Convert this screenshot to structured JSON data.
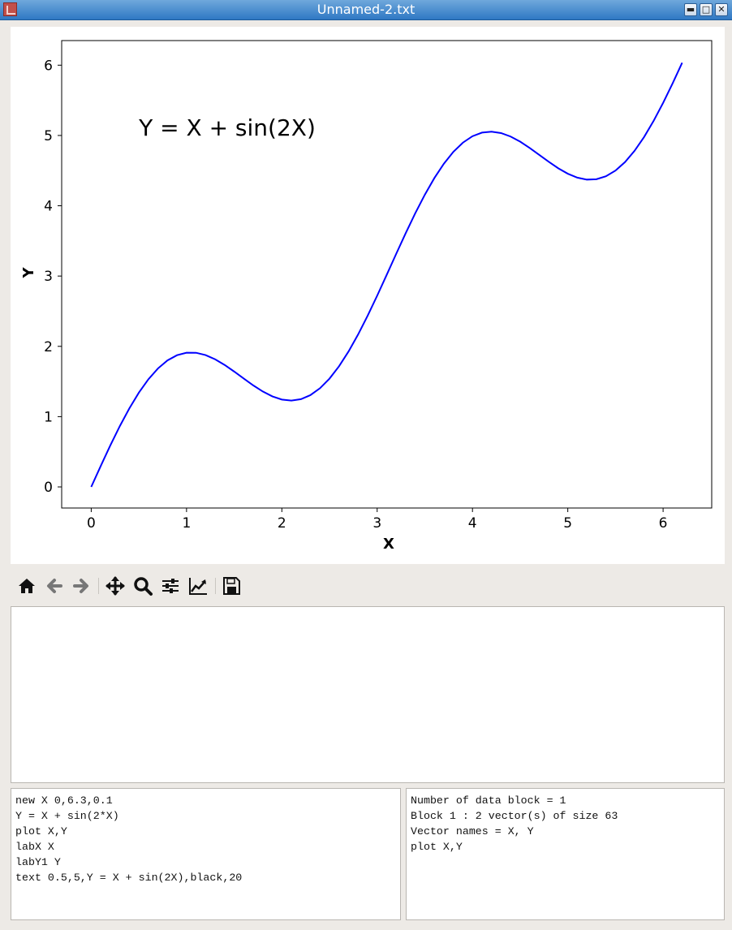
{
  "window": {
    "title": "Unnamed-2.txt",
    "buttons": [
      "minimize",
      "maximize",
      "close"
    ]
  },
  "plot": {
    "xlabel": "X",
    "ylabel": "Y",
    "annotation": {
      "text": "Y = X + sin(2X)",
      "x": 0.5,
      "y": 5,
      "color": "black"
    },
    "xticks": [
      "0",
      "1",
      "2",
      "3",
      "4",
      "5",
      "6"
    ],
    "yticks": [
      "0",
      "1",
      "2",
      "3",
      "4",
      "5",
      "6"
    ]
  },
  "chart_data": {
    "type": "line",
    "xlabel": "X",
    "ylabel": "Y",
    "xlim": [
      -0.31,
      6.51
    ],
    "ylim": [
      -0.3,
      6.35
    ],
    "grid": false,
    "series": [
      {
        "color": "#0000ff",
        "x_start": 0,
        "x_step": 0.1,
        "count": 63,
        "expression": "Y = X + sin(2*X)"
      }
    ],
    "annotations": [
      {
        "text": "Y = X + sin(2X)",
        "x": 0.5,
        "y": 5,
        "color": "#000000"
      }
    ]
  },
  "toolbar": {
    "tools": [
      "home-icon",
      "back-arrow-icon",
      "forward-arrow-icon",
      "pan-icon",
      "zoom-icon",
      "configure-subplots-icon",
      "edit-axis-icon",
      "save-icon"
    ]
  },
  "output": {
    "text": ""
  },
  "script": {
    "lines": [
      "new X 0,6.3,0.1",
      "Y = X + sin(2*X)",
      "plot X,Y",
      "labX X",
      "labY1 Y",
      "text 0.5,5,Y = X + sin(2X),black,20"
    ]
  },
  "info": {
    "lines": [
      "Number of data block = 1",
      "Block 1 : 2 vector(s) of size 63",
      "Vector names = X, Y",
      "plot X,Y"
    ]
  },
  "colors": {
    "line": "#0000ff",
    "titlebar": "#3a82cc",
    "background": "#edeae6"
  }
}
